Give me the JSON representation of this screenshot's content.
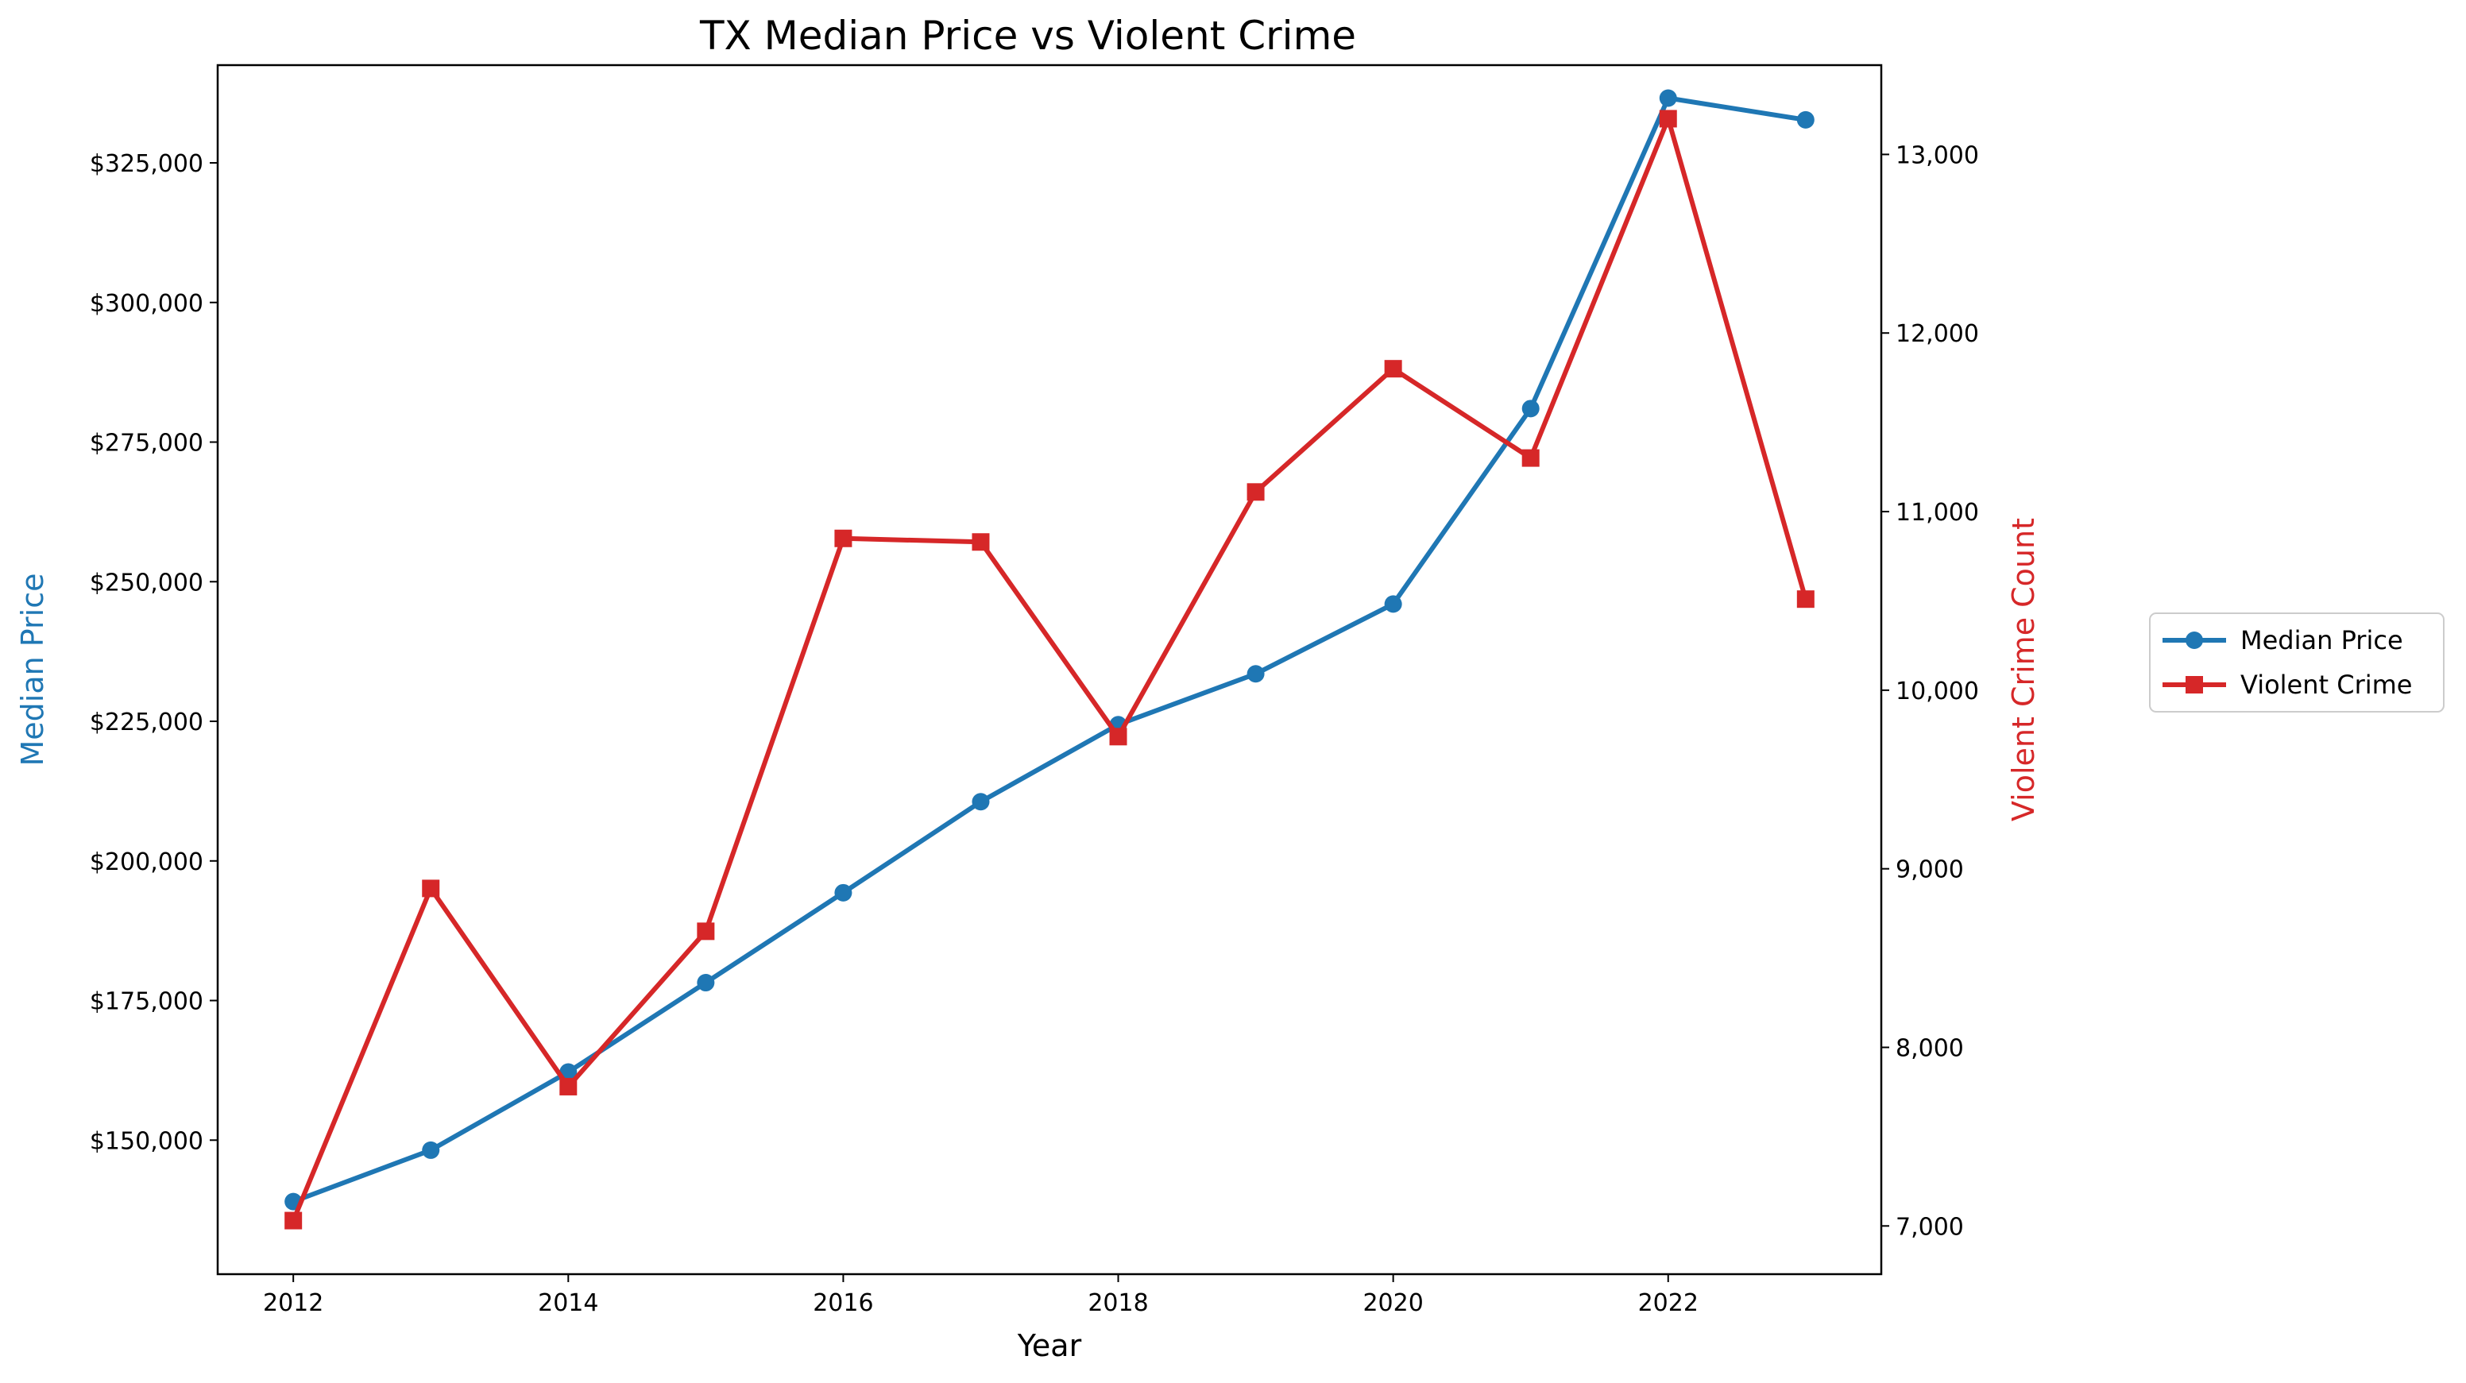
{
  "chart_data": {
    "type": "line",
    "title": "TX Median Price vs Violent Crime",
    "xlabel": "Year",
    "ylabel_left": "Median Price",
    "ylabel_right": "Violent Crime Count",
    "xlim": [
      2011.45,
      2023.55
    ],
    "ylim_left": [
      126000,
      342500
    ],
    "ylim_right": [
      6730,
      13500
    ],
    "x_ticks": [
      2012,
      2014,
      2016,
      2018,
      2020,
      2022
    ],
    "x_tick_labels": [
      "2012",
      "2014",
      "2016",
      "2018",
      "2020",
      "2022"
    ],
    "y_left_ticks": [
      150000,
      175000,
      200000,
      225000,
      250000,
      275000,
      300000,
      325000
    ],
    "y_left_tick_labels": [
      "$150,000",
      "$175,000",
      "$200,000",
      "$225,000",
      "$250,000",
      "$275,000",
      "$300,000",
      "$325,000"
    ],
    "y_right_ticks": [
      7000,
      8000,
      9000,
      10000,
      11000,
      12000,
      13000
    ],
    "y_right_tick_labels": [
      "7,000",
      "8,000",
      "9,000",
      "10,000",
      "11,000",
      "12,000",
      "13,000"
    ],
    "x": [
      2012,
      2013,
      2014,
      2015,
      2016,
      2017,
      2018,
      2019,
      2020,
      2021,
      2022,
      2023
    ],
    "series": [
      {
        "name": "Median Price",
        "axis": "left",
        "color": "#1f77b4",
        "marker": "circle",
        "values": [
          139000,
          148200,
          162200,
          178200,
          194300,
          210600,
          224400,
          233500,
          246000,
          281000,
          336600,
          332700
        ]
      },
      {
        "name": "Violent Crime",
        "axis": "right",
        "color": "#d62728",
        "marker": "square",
        "values": [
          7030,
          8890,
          7780,
          8650,
          10850,
          10830,
          9740,
          11110,
          11800,
          11300,
          13200,
          10510
        ]
      }
    ],
    "grid": false,
    "legend_position": "outside-right"
  }
}
